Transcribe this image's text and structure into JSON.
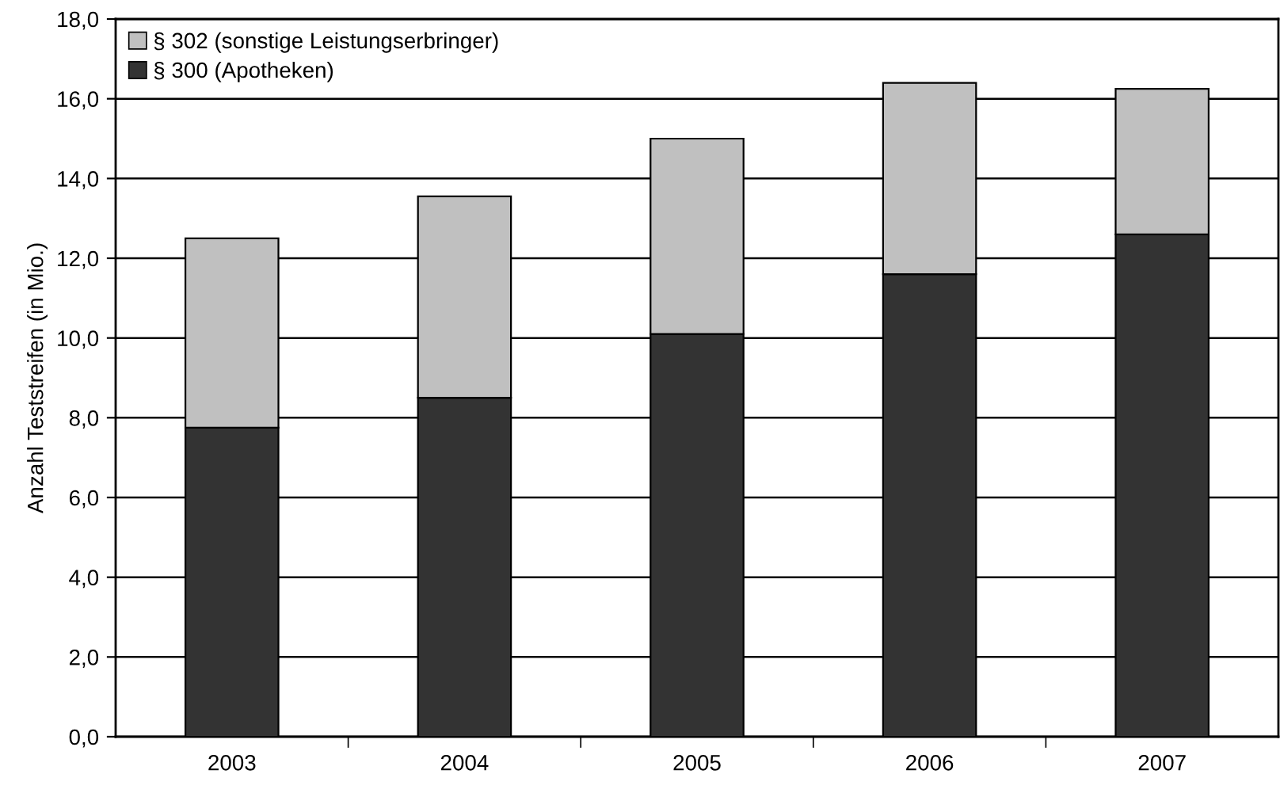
{
  "chart_data": {
    "type": "bar",
    "stacked": true,
    "ylabel": "Anzahl Teststreifen (in Mio.)",
    "categories": [
      "2003",
      "2004",
      "2005",
      "2006",
      "2007"
    ],
    "series": [
      {
        "name": "§ 300 (Apotheken)",
        "color": "#333333",
        "values": [
          7.75,
          8.5,
          10.1,
          11.6,
          12.6
        ]
      },
      {
        "name": "§ 302 (sonstige Leistungserbringer)",
        "color": "#c0c0c0",
        "values": [
          4.75,
          5.05,
          4.9,
          4.8,
          3.65
        ]
      }
    ],
    "ylim": [
      0,
      18
    ],
    "yticks": [
      {
        "value": 0,
        "label": "0,0"
      },
      {
        "value": 2,
        "label": "2,0"
      },
      {
        "value": 4,
        "label": "4,0"
      },
      {
        "value": 6,
        "label": "6,0"
      },
      {
        "value": 8,
        "label": "8,0"
      },
      {
        "value": 10,
        "label": "10,0"
      },
      {
        "value": 12,
        "label": "12,0"
      },
      {
        "value": 14,
        "label": "14,0"
      },
      {
        "value": 16,
        "label": "16,0"
      },
      {
        "value": 18,
        "label": "18,0"
      }
    ],
    "grid": "y",
    "legend": "top left"
  }
}
